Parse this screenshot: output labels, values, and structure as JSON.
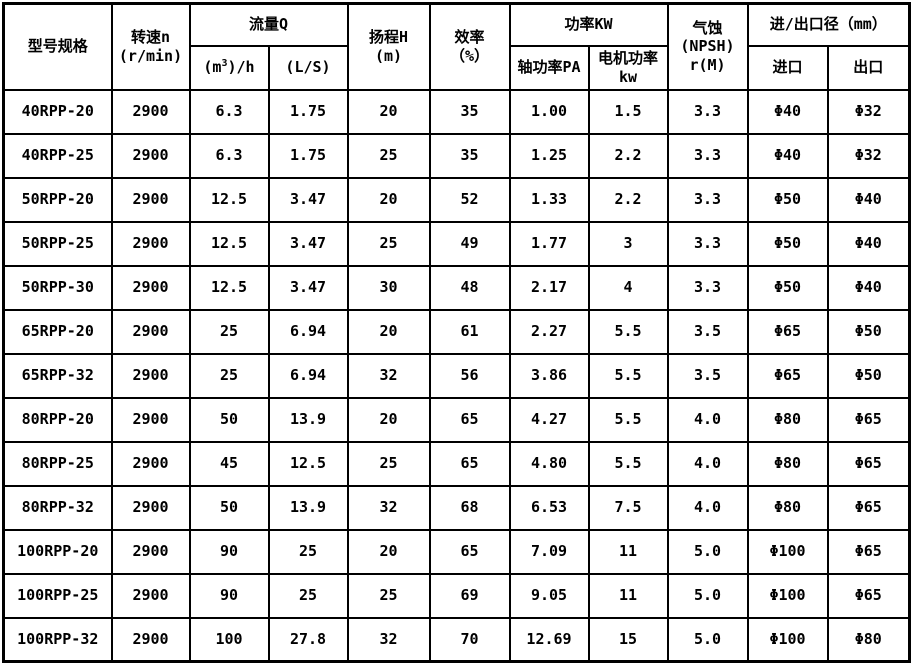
{
  "accent_colors": {
    "border": "#000000",
    "background": "#ffffff",
    "text": "#000000"
  },
  "table": {
    "header": {
      "model": "型号规格",
      "speed_line1": "转速n",
      "speed_line2": "(r/min)",
      "flow_group": "流量Q",
      "flow_m3h_pre": "(m",
      "flow_m3h_sup": "3",
      "flow_m3h_post": ")/h",
      "flow_ls": "(L/S)",
      "head_line1": "扬程H",
      "head_line2": "(m)",
      "eff_line1": "效率",
      "eff_line2": "（%）",
      "power_group": "功率KW",
      "power_shaft": "轴功率PA",
      "power_motor_line1": "电机功率",
      "power_motor_line2": "kw",
      "npsh_line1": "气蚀",
      "npsh_line2": "(NPSH)",
      "npsh_line3": "r(M)",
      "inout_group": "进/出口径（mm）",
      "inlet": "进口",
      "outlet": "出口"
    },
    "rows": [
      [
        "40RPP-20",
        "2900",
        "6.3",
        "1.75",
        "20",
        "35",
        "1.00",
        "1.5",
        "3.3",
        "Φ40",
        "Φ32"
      ],
      [
        "40RPP-25",
        "2900",
        "6.3",
        "1.75",
        "25",
        "35",
        "1.25",
        "2.2",
        "3.3",
        "Φ40",
        "Φ32"
      ],
      [
        "50RPP-20",
        "2900",
        "12.5",
        "3.47",
        "20",
        "52",
        "1.33",
        "2.2",
        "3.3",
        "Φ50",
        "Φ40"
      ],
      [
        "50RPP-25",
        "2900",
        "12.5",
        "3.47",
        "25",
        "49",
        "1.77",
        "3",
        "3.3",
        "Φ50",
        "Φ40"
      ],
      [
        "50RPP-30",
        "2900",
        "12.5",
        "3.47",
        "30",
        "48",
        "2.17",
        "4",
        "3.3",
        "Φ50",
        "Φ40"
      ],
      [
        "65RPP-20",
        "2900",
        "25",
        "6.94",
        "20",
        "61",
        "2.27",
        "5.5",
        "3.5",
        "Φ65",
        "Φ50"
      ],
      [
        "65RPP-32",
        "2900",
        "25",
        "6.94",
        "32",
        "56",
        "3.86",
        "5.5",
        "3.5",
        "Φ65",
        "Φ50"
      ],
      [
        "80RPP-20",
        "2900",
        "50",
        "13.9",
        "20",
        "65",
        "4.27",
        "5.5",
        "4.0",
        "Φ80",
        "Φ65"
      ],
      [
        "80RPP-25",
        "2900",
        "45",
        "12.5",
        "25",
        "65",
        "4.80",
        "5.5",
        "4.0",
        "Φ80",
        "Φ65"
      ],
      [
        "80RPP-32",
        "2900",
        "50",
        "13.9",
        "32",
        "68",
        "6.53",
        "7.5",
        "4.0",
        "Φ80",
        "Φ65"
      ],
      [
        "100RPP-20",
        "2900",
        "90",
        "25",
        "20",
        "65",
        "7.09",
        "11",
        "5.0",
        "Φ100",
        "Φ65"
      ],
      [
        "100RPP-25",
        "2900",
        "90",
        "25",
        "25",
        "69",
        "9.05",
        "11",
        "5.0",
        "Φ100",
        "Φ65"
      ],
      [
        "100RPP-32",
        "2900",
        "100",
        "27.8",
        "32",
        "70",
        "12.69",
        "15",
        "5.0",
        "Φ100",
        "Φ80"
      ]
    ]
  }
}
